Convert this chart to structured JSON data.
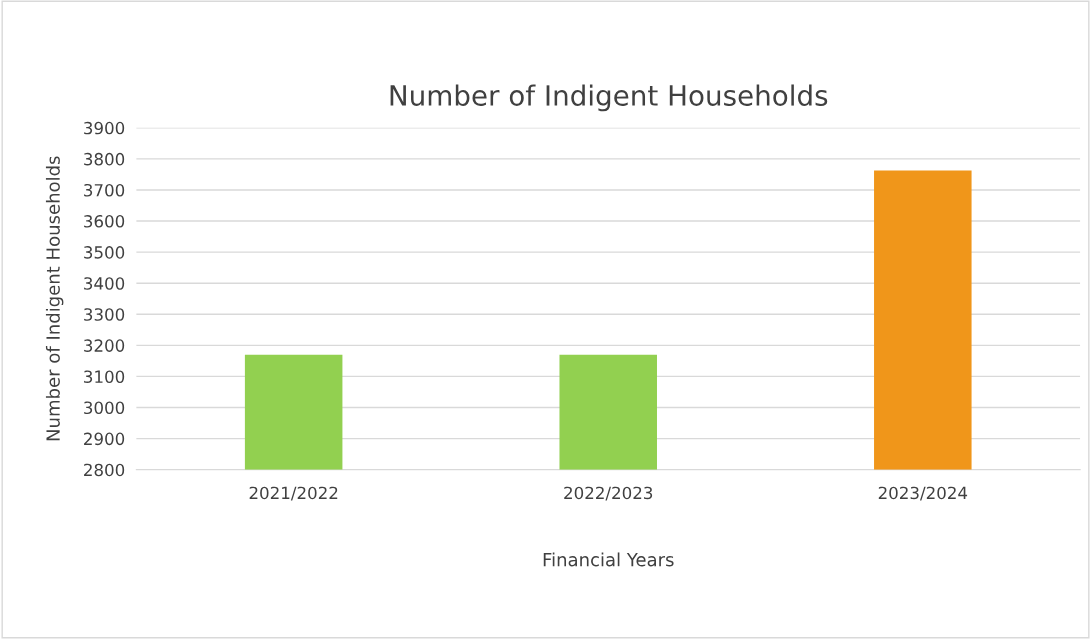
{
  "chart_data": {
    "type": "bar",
    "title": "Number of Indigent Households",
    "xlabel": "Financial Years",
    "ylabel": "Number of Indigent Households",
    "categories": [
      "2021/2022",
      "2022/2023",
      "2023/2024"
    ],
    "values": [
      3170,
      3170,
      3763
    ],
    "colors": [
      "#92d050",
      "#92d050",
      "#f0961a"
    ],
    "ylim": [
      2800,
      3900
    ],
    "yticks": [
      2800,
      2900,
      3000,
      3100,
      3200,
      3300,
      3400,
      3500,
      3600,
      3700,
      3800,
      3900
    ],
    "grid": "y"
  }
}
